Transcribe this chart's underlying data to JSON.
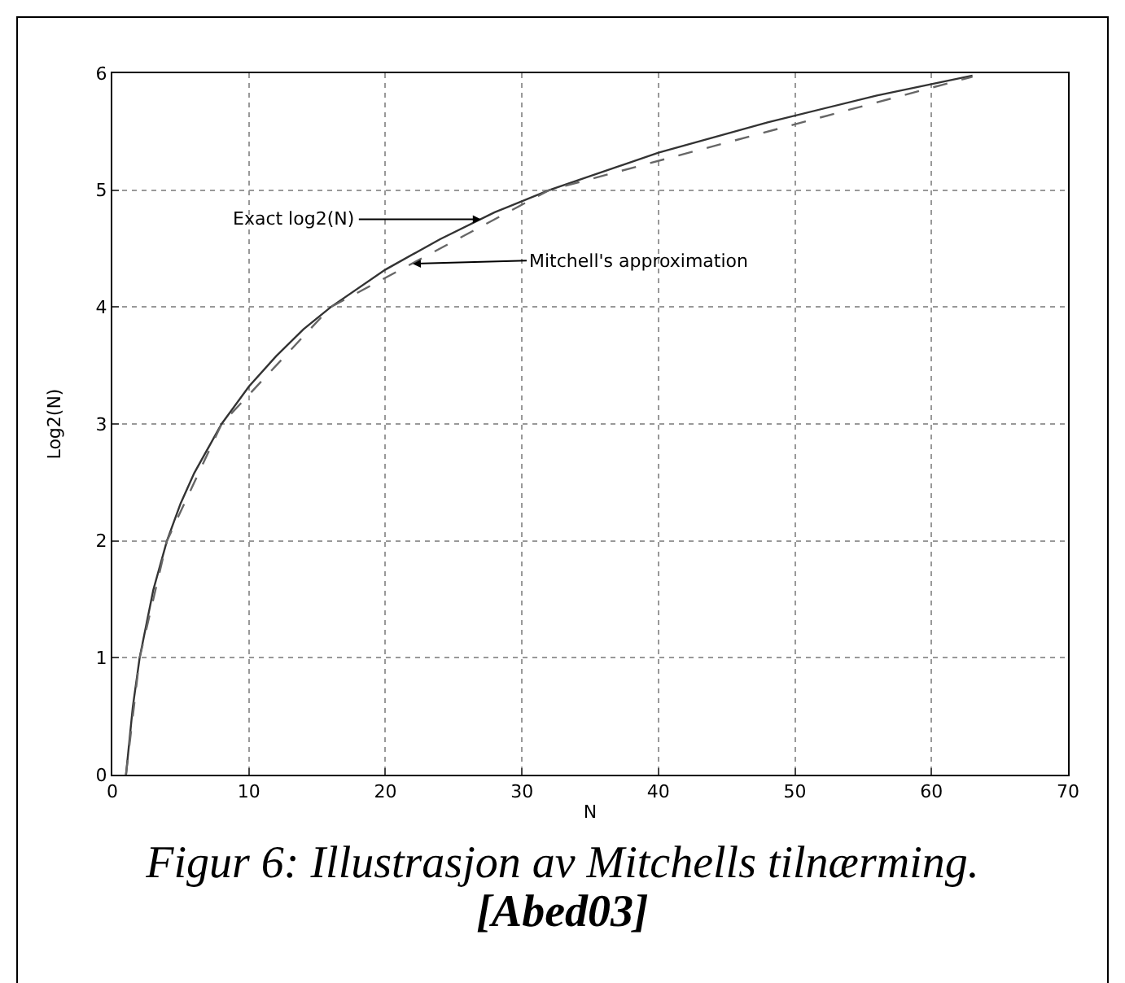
{
  "chart_data": {
    "type": "line",
    "xlabel": "N",
    "ylabel": "Log2(N)",
    "xlim": [
      0,
      70
    ],
    "xticks": [
      0,
      10,
      20,
      30,
      40,
      50,
      60,
      70
    ],
    "ylim": [
      0,
      6
    ],
    "yticks": [
      0,
      1,
      2,
      3,
      4,
      5,
      6
    ],
    "grid": true,
    "marker": "none",
    "series": [
      {
        "color": "#333333",
        "line_style": "solid",
        "x": [
          1,
          1.5,
          2,
          3,
          4,
          5,
          6,
          8,
          10,
          12,
          14,
          16,
          20,
          24,
          28,
          32,
          40,
          48,
          56,
          63
        ],
        "values": [
          0,
          0.58,
          1,
          1.58,
          2,
          2.32,
          2.58,
          3,
          3.32,
          3.58,
          3.81,
          4,
          4.32,
          4.58,
          4.81,
          5,
          5.32,
          5.58,
          5.81,
          5.98
        ]
      },
      {
        "color": "#666666",
        "line_style": "dashed",
        "x": [
          1,
          2,
          4,
          8,
          16,
          32,
          63
        ],
        "values": [
          0,
          1,
          2,
          3,
          4,
          5,
          5.97
        ]
      }
    ],
    "annotations": [
      {
        "text": "Exact log2(N)",
        "x": 27,
        "y": 4.75
      },
      {
        "text": "Mitchell's approximation",
        "x": 22,
        "y": 4.37
      },
      "Figur 6: Illustrasjon av Mitchells tilnærming.",
      "[Abed03]"
    ]
  }
}
